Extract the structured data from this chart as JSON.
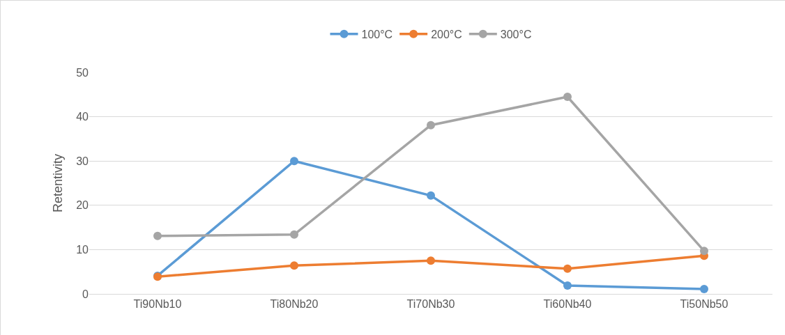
{
  "chart_data": {
    "type": "line",
    "ylabel": "Retentivity",
    "categories": [
      "Ti90Nb10",
      "Ti80Nb20",
      "Ti70Nb30",
      "Ti60Nb40",
      "Ti50Nb50"
    ],
    "series": [
      {
        "name": "100°C",
        "color": "#5b9bd5",
        "values": [
          4.1,
          30.0,
          22.2,
          1.9,
          1.1
        ]
      },
      {
        "name": "200°C",
        "color": "#ed7d31",
        "values": [
          3.9,
          6.4,
          7.5,
          5.7,
          8.6
        ]
      },
      {
        "name": "300°C",
        "color": "#a5a5a5",
        "values": [
          13.1,
          13.4,
          38.1,
          44.5,
          9.7
        ]
      }
    ],
    "ylim": [
      0,
      50
    ],
    "yticks": [
      0,
      10,
      20,
      30,
      40,
      50
    ],
    "grid": "y",
    "legend": "top",
    "marker": "circle",
    "line_style": "solid"
  }
}
